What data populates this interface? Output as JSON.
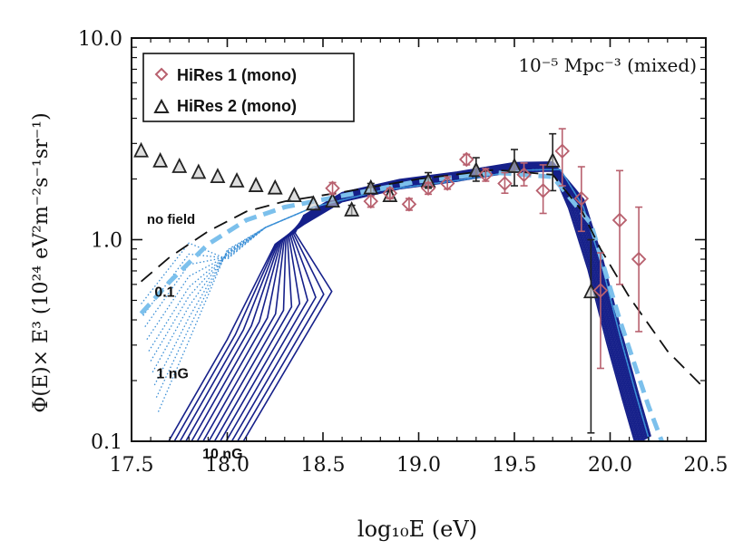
{
  "chart_data": {
    "type": "line",
    "title": "",
    "annotation_top_right": "10⁻⁵ Mpc⁻³ (mixed)",
    "xlabel": "log₁₀E (eV)",
    "ylabel": "Φ(E)× E³ (10²⁴ eV²m⁻²s⁻¹sr⁻¹)",
    "xlim": [
      17.5,
      20.5
    ],
    "ylim_log": [
      0.1,
      10.0
    ],
    "y_scale": "log",
    "x_ticks": [
      "17.5",
      "18.0",
      "18.5",
      "19.0",
      "19.5",
      "20.0",
      "20.5"
    ],
    "y_ticks": [
      "0.1",
      "1.0",
      "10.0"
    ],
    "legend": {
      "position": "top-left",
      "entries": [
        {
          "label": "HiRes 1 (mono)",
          "marker": "diamond",
          "color": "#b8606e"
        },
        {
          "label": "HiRes 2 (mono)",
          "marker": "triangle",
          "color": "#222222"
        }
      ]
    },
    "curve_labels": [
      {
        "text": "no field",
        "x": 17.58,
        "y": 1.2
      },
      {
        "text": "0.1",
        "x": 17.62,
        "y": 0.52
      },
      {
        "text": "1 nG",
        "x": 17.63,
        "y": 0.205
      },
      {
        "text": "10 nG",
        "x": 17.87,
        "y": 0.082
      }
    ],
    "series": [
      {
        "name": "HiRes 1 (mono)",
        "color": "#b8606e",
        "marker": "diamond",
        "points": [
          {
            "x": 18.55,
            "y": 1.8,
            "err_lo": 0.12,
            "err_hi": 0.12
          },
          {
            "x": 18.75,
            "y": 1.55,
            "err_lo": 0.1,
            "err_hi": 0.1
          },
          {
            "x": 18.85,
            "y": 1.7,
            "err_lo": 0.1,
            "err_hi": 0.1
          },
          {
            "x": 18.95,
            "y": 1.5,
            "err_lo": 0.1,
            "err_hi": 0.1
          },
          {
            "x": 19.05,
            "y": 1.8,
            "err_lo": 0.12,
            "err_hi": 0.12
          },
          {
            "x": 19.15,
            "y": 1.9,
            "err_lo": 0.12,
            "err_hi": 0.15
          },
          {
            "x": 19.25,
            "y": 2.5,
            "err_lo": 0.15,
            "err_hi": 0.15
          },
          {
            "x": 19.35,
            "y": 2.1,
            "err_lo": 0.15,
            "err_hi": 0.15
          },
          {
            "x": 19.45,
            "y": 1.9,
            "err_lo": 0.2,
            "err_hi": 0.25
          },
          {
            "x": 19.55,
            "y": 2.1,
            "err_lo": 0.25,
            "err_hi": 0.3
          },
          {
            "x": 19.65,
            "y": 1.75,
            "err_lo": 0.4,
            "err_hi": 0.6
          },
          {
            "x": 19.75,
            "y": 2.75,
            "err_lo": 0.9,
            "err_hi": 0.8
          },
          {
            "x": 19.85,
            "y": 1.6,
            "err_lo": 0.5,
            "err_hi": 0.7
          },
          {
            "x": 19.95,
            "y": 0.56,
            "err_lo": 0.33,
            "err_hi": 0.3
          },
          {
            "x": 20.05,
            "y": 1.25,
            "err_lo": 0.65,
            "err_hi": 0.95
          },
          {
            "x": 20.15,
            "y": 0.8,
            "err_lo": 0.45,
            "err_hi": 0.65
          }
        ]
      },
      {
        "name": "HiRes 2 (mono)",
        "color": "#222222",
        "marker": "triangle",
        "points": [
          {
            "x": 17.55,
            "y": 2.75,
            "err_lo": 0,
            "err_hi": 0
          },
          {
            "x": 17.65,
            "y": 2.45,
            "err_lo": 0,
            "err_hi": 0
          },
          {
            "x": 17.75,
            "y": 2.3,
            "err_lo": 0,
            "err_hi": 0
          },
          {
            "x": 17.85,
            "y": 2.15,
            "err_lo": 0,
            "err_hi": 0
          },
          {
            "x": 17.95,
            "y": 2.05,
            "err_lo": 0,
            "err_hi": 0
          },
          {
            "x": 18.05,
            "y": 1.95,
            "err_lo": 0,
            "err_hi": 0
          },
          {
            "x": 18.15,
            "y": 1.85,
            "err_lo": 0,
            "err_hi": 0
          },
          {
            "x": 18.25,
            "y": 1.8,
            "err_lo": 0,
            "err_hi": 0
          },
          {
            "x": 18.35,
            "y": 1.65,
            "err_lo": 0,
            "err_hi": 0
          },
          {
            "x": 18.45,
            "y": 1.5,
            "err_lo": 0,
            "err_hi": 0
          },
          {
            "x": 18.55,
            "y": 1.55,
            "err_lo": 0,
            "err_hi": 0
          },
          {
            "x": 18.65,
            "y": 1.4,
            "err_lo": 0.08,
            "err_hi": 0.08
          },
          {
            "x": 18.75,
            "y": 1.8,
            "err_lo": 0.1,
            "err_hi": 0.1
          },
          {
            "x": 18.85,
            "y": 1.65,
            "err_lo": 0.1,
            "err_hi": 0.1
          },
          {
            "x": 19.05,
            "y": 1.95,
            "err_lo": 0.15,
            "err_hi": 0.2
          },
          {
            "x": 19.3,
            "y": 2.2,
            "err_lo": 0.25,
            "err_hi": 0.35
          },
          {
            "x": 19.5,
            "y": 2.3,
            "err_lo": 0.45,
            "err_hi": 0.5
          },
          {
            "x": 19.7,
            "y": 2.45,
            "err_lo": 0.7,
            "err_hi": 0.9
          },
          {
            "x": 19.9,
            "y": 0.55,
            "err_lo": 0.44,
            "err_hi": 0.45
          }
        ]
      },
      {
        "name": "no field",
        "style": "dashed-long",
        "color": "#111111",
        "points": [
          {
            "x": 17.55,
            "y": 0.62
          },
          {
            "x": 17.7,
            "y": 0.82
          },
          {
            "x": 17.9,
            "y": 1.1
          },
          {
            "x": 18.1,
            "y": 1.38
          },
          {
            "x": 18.3,
            "y": 1.55
          },
          {
            "x": 18.6,
            "y": 1.72
          },
          {
            "x": 19.0,
            "y": 2.0
          },
          {
            "x": 19.4,
            "y": 2.22
          },
          {
            "x": 19.7,
            "y": 2.1
          },
          {
            "x": 19.85,
            "y": 1.4
          },
          {
            "x": 19.95,
            "y": 0.9
          },
          {
            "x": 20.1,
            "y": 0.52
          },
          {
            "x": 20.3,
            "y": 0.28
          },
          {
            "x": 20.5,
            "y": 0.18
          }
        ]
      },
      {
        "name": "0.1",
        "style": "dashed-thick",
        "color": "#7cc0ec",
        "points": [
          {
            "x": 17.55,
            "y": 0.43
          },
          {
            "x": 17.7,
            "y": 0.62
          },
          {
            "x": 17.9,
            "y": 0.95
          },
          {
            "x": 18.1,
            "y": 1.25
          },
          {
            "x": 18.3,
            "y": 1.45
          },
          {
            "x": 18.6,
            "y": 1.65
          },
          {
            "x": 19.0,
            "y": 1.95
          },
          {
            "x": 19.4,
            "y": 2.15
          },
          {
            "x": 19.7,
            "y": 2.05
          },
          {
            "x": 19.9,
            "y": 1.2
          },
          {
            "x": 20.05,
            "y": 0.4
          },
          {
            "x": 20.2,
            "y": 0.15
          },
          {
            "x": 20.27,
            "y": 0.1
          }
        ]
      }
    ],
    "curve_families": [
      {
        "name": "1 nG",
        "style": "dotted",
        "color": "#3b8fd6",
        "start_x": [
          17.55,
          17.56,
          17.57,
          17.58,
          17.59,
          17.6,
          17.61,
          17.62,
          17.63,
          17.64
        ],
        "start_y": [
          0.48,
          0.42,
          0.37,
          0.32,
          0.28,
          0.25,
          0.22,
          0.19,
          0.165,
          0.14
        ]
      },
      {
        "name": "10 nG",
        "style": "solid",
        "color": "#16208a",
        "start_x": [
          17.68,
          17.71,
          17.74,
          17.77,
          17.8,
          17.83,
          17.86,
          17.89,
          17.92,
          17.95,
          17.98,
          18.01,
          18.04,
          18.07
        ],
        "start_y": [
          0.1,
          0.1,
          0.1,
          0.1,
          0.1,
          0.1,
          0.1,
          0.1,
          0.1,
          0.1,
          0.1,
          0.1,
          0.1,
          0.1
        ]
      }
    ]
  }
}
